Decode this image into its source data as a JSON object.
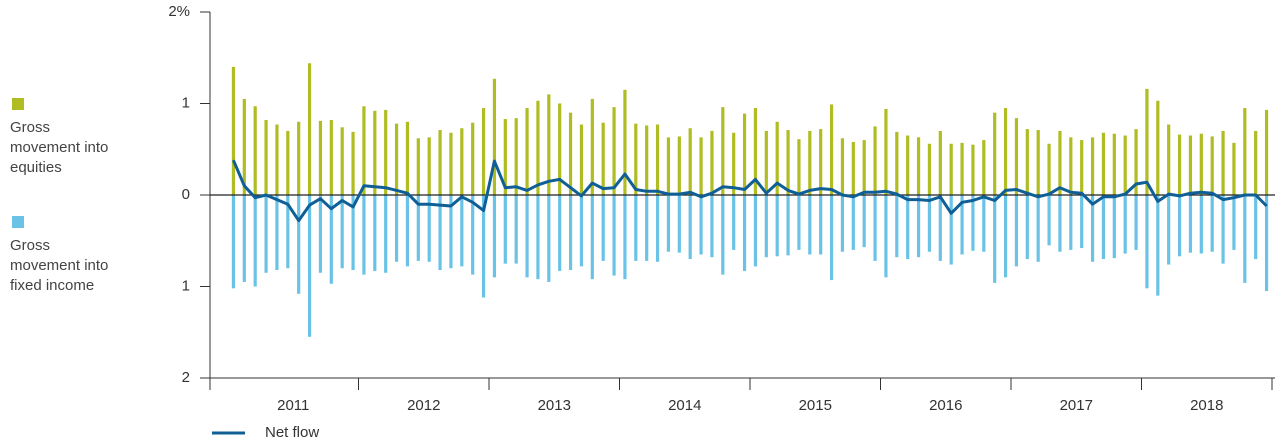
{
  "chart_data": {
    "type": "bar",
    "categories": [
      null,
      null,
      null,
      null,
      null,
      "2011",
      null,
      null,
      null,
      null,
      null,
      null,
      null,
      null,
      null,
      null,
      null,
      "2012",
      null,
      null,
      null,
      null,
      null,
      null,
      null,
      null,
      null,
      null,
      null,
      "2013",
      null,
      null,
      null,
      null,
      null,
      null,
      null,
      null,
      null,
      null,
      null,
      "2014",
      null,
      null,
      null,
      null,
      null,
      null,
      null,
      null,
      null,
      null,
      null,
      "2015",
      null,
      null,
      null,
      null,
      null,
      null,
      null,
      null,
      null,
      null,
      null,
      "2016",
      null,
      null,
      null,
      null,
      null,
      null,
      null,
      null,
      null,
      null,
      null,
      "2017",
      null,
      null,
      null,
      null,
      null,
      null,
      null,
      null,
      null,
      null,
      null,
      "2018",
      null,
      null,
      null,
      null,
      null,
      null
    ],
    "series": [
      {
        "name": "Gross movement into equities",
        "color": "#afbc22",
        "values": [
          1.4,
          1.05,
          0.97,
          0.82,
          0.77,
          0.7,
          0.8,
          1.44,
          0.81,
          0.82,
          0.74,
          0.69,
          0.97,
          0.92,
          0.93,
          0.78,
          0.8,
          0.62,
          0.63,
          0.71,
          0.68,
          0.73,
          0.79,
          0.95,
          1.27,
          0.83,
          0.84,
          0.95,
          1.03,
          1.1,
          1.0,
          0.9,
          0.77,
          1.05,
          0.79,
          0.96,
          1.15,
          0.78,
          0.76,
          0.77,
          0.63,
          0.64,
          0.73,
          0.63,
          0.7,
          0.96,
          0.68,
          0.89,
          0.95,
          0.7,
          0.8,
          0.71,
          0.61,
          0.7,
          0.72,
          0.99,
          0.62,
          0.58,
          0.6,
          0.75,
          0.94,
          0.69,
          0.65,
          0.63,
          0.56,
          0.7,
          0.56,
          0.57,
          0.55,
          0.6,
          0.9,
          0.95,
          0.84,
          0.72,
          0.71,
          0.56,
          0.7,
          0.63,
          0.6,
          0.63,
          0.68,
          0.67,
          0.65,
          0.72,
          1.16,
          1.03,
          0.77,
          0.66,
          0.65,
          0.67,
          0.64,
          0.7,
          0.57,
          0.95,
          0.7,
          0.93
        ]
      },
      {
        "name": "Gross movement into fixed income",
        "color": "#6ac3e6",
        "values": [
          -1.02,
          -0.95,
          -1.0,
          -0.85,
          -0.82,
          -0.8,
          -1.08,
          -1.55,
          -0.85,
          -0.97,
          -0.8,
          -0.82,
          -0.87,
          -0.83,
          -0.85,
          -0.73,
          -0.78,
          -0.72,
          -0.73,
          -0.82,
          -0.8,
          -0.78,
          -0.87,
          -1.12,
          -0.9,
          -0.75,
          -0.75,
          -0.9,
          -0.92,
          -0.95,
          -0.83,
          -0.82,
          -0.78,
          -0.92,
          -0.72,
          -0.88,
          -0.92,
          -0.72,
          -0.72,
          -0.73,
          -0.62,
          -0.63,
          -0.7,
          -0.65,
          -0.68,
          -0.87,
          -0.6,
          -0.83,
          -0.78,
          -0.68,
          -0.67,
          -0.66,
          -0.6,
          -0.65,
          -0.65,
          -0.93,
          -0.62,
          -0.6,
          -0.57,
          -0.72,
          -0.9,
          -0.68,
          -0.7,
          -0.68,
          -0.62,
          -0.72,
          -0.76,
          -0.65,
          -0.61,
          -0.62,
          -0.96,
          -0.9,
          -0.78,
          -0.7,
          -0.73,
          -0.55,
          -0.62,
          -0.6,
          -0.58,
          -0.73,
          -0.7,
          -0.69,
          -0.64,
          -0.6,
          -1.02,
          -1.1,
          -0.76,
          -0.67,
          -0.63,
          -0.64,
          -0.62,
          -0.75,
          -0.6,
          -0.96,
          -0.7,
          -1.05
        ]
      },
      {
        "name": "Net flow",
        "type": "line",
        "color": "#0f5f96",
        "values": [
          0.38,
          0.1,
          -0.03,
          0,
          -0.05,
          -0.1,
          -0.28,
          -0.11,
          -0.04,
          -0.15,
          -0.06,
          -0.13,
          0.1,
          0.09,
          0.08,
          0.05,
          0.02,
          -0.1,
          -0.1,
          -0.11,
          -0.12,
          -0.02,
          -0.08,
          -0.17,
          0.37,
          0.08,
          0.09,
          0.05,
          0.11,
          0.15,
          0.17,
          0.08,
          -0.01,
          0.13,
          0.07,
          0.08,
          0.23,
          0.06,
          0.04,
          0.04,
          0.01,
          0.01,
          0.03,
          -0.02,
          0.02,
          0.09,
          0.08,
          0.06,
          0.17,
          0.02,
          0.13,
          0.05,
          0.01,
          0.05,
          0.07,
          0.06,
          0.0,
          -0.02,
          0.03,
          0.03,
          0.04,
          0.01,
          -0.05,
          -0.05,
          -0.06,
          -0.02,
          -0.2,
          -0.08,
          -0.06,
          -0.02,
          -0.06,
          0.05,
          0.06,
          0.02,
          -0.02,
          0.01,
          0.08,
          0.03,
          0.02,
          -0.1,
          -0.02,
          -0.02,
          0.01,
          0.12,
          0.14,
          -0.07,
          0.01,
          -0.01,
          0.02,
          0.03,
          0.02,
          -0.05,
          -0.03,
          0.0,
          0.0,
          -0.12
        ]
      }
    ],
    "ylim": [
      -2,
      2
    ],
    "yticks": [
      {
        "value": 2,
        "label": "2%"
      },
      1,
      0,
      {
        "value": -1,
        "label": "1"
      },
      {
        "value": -2,
        "label": "2"
      }
    ]
  }
}
